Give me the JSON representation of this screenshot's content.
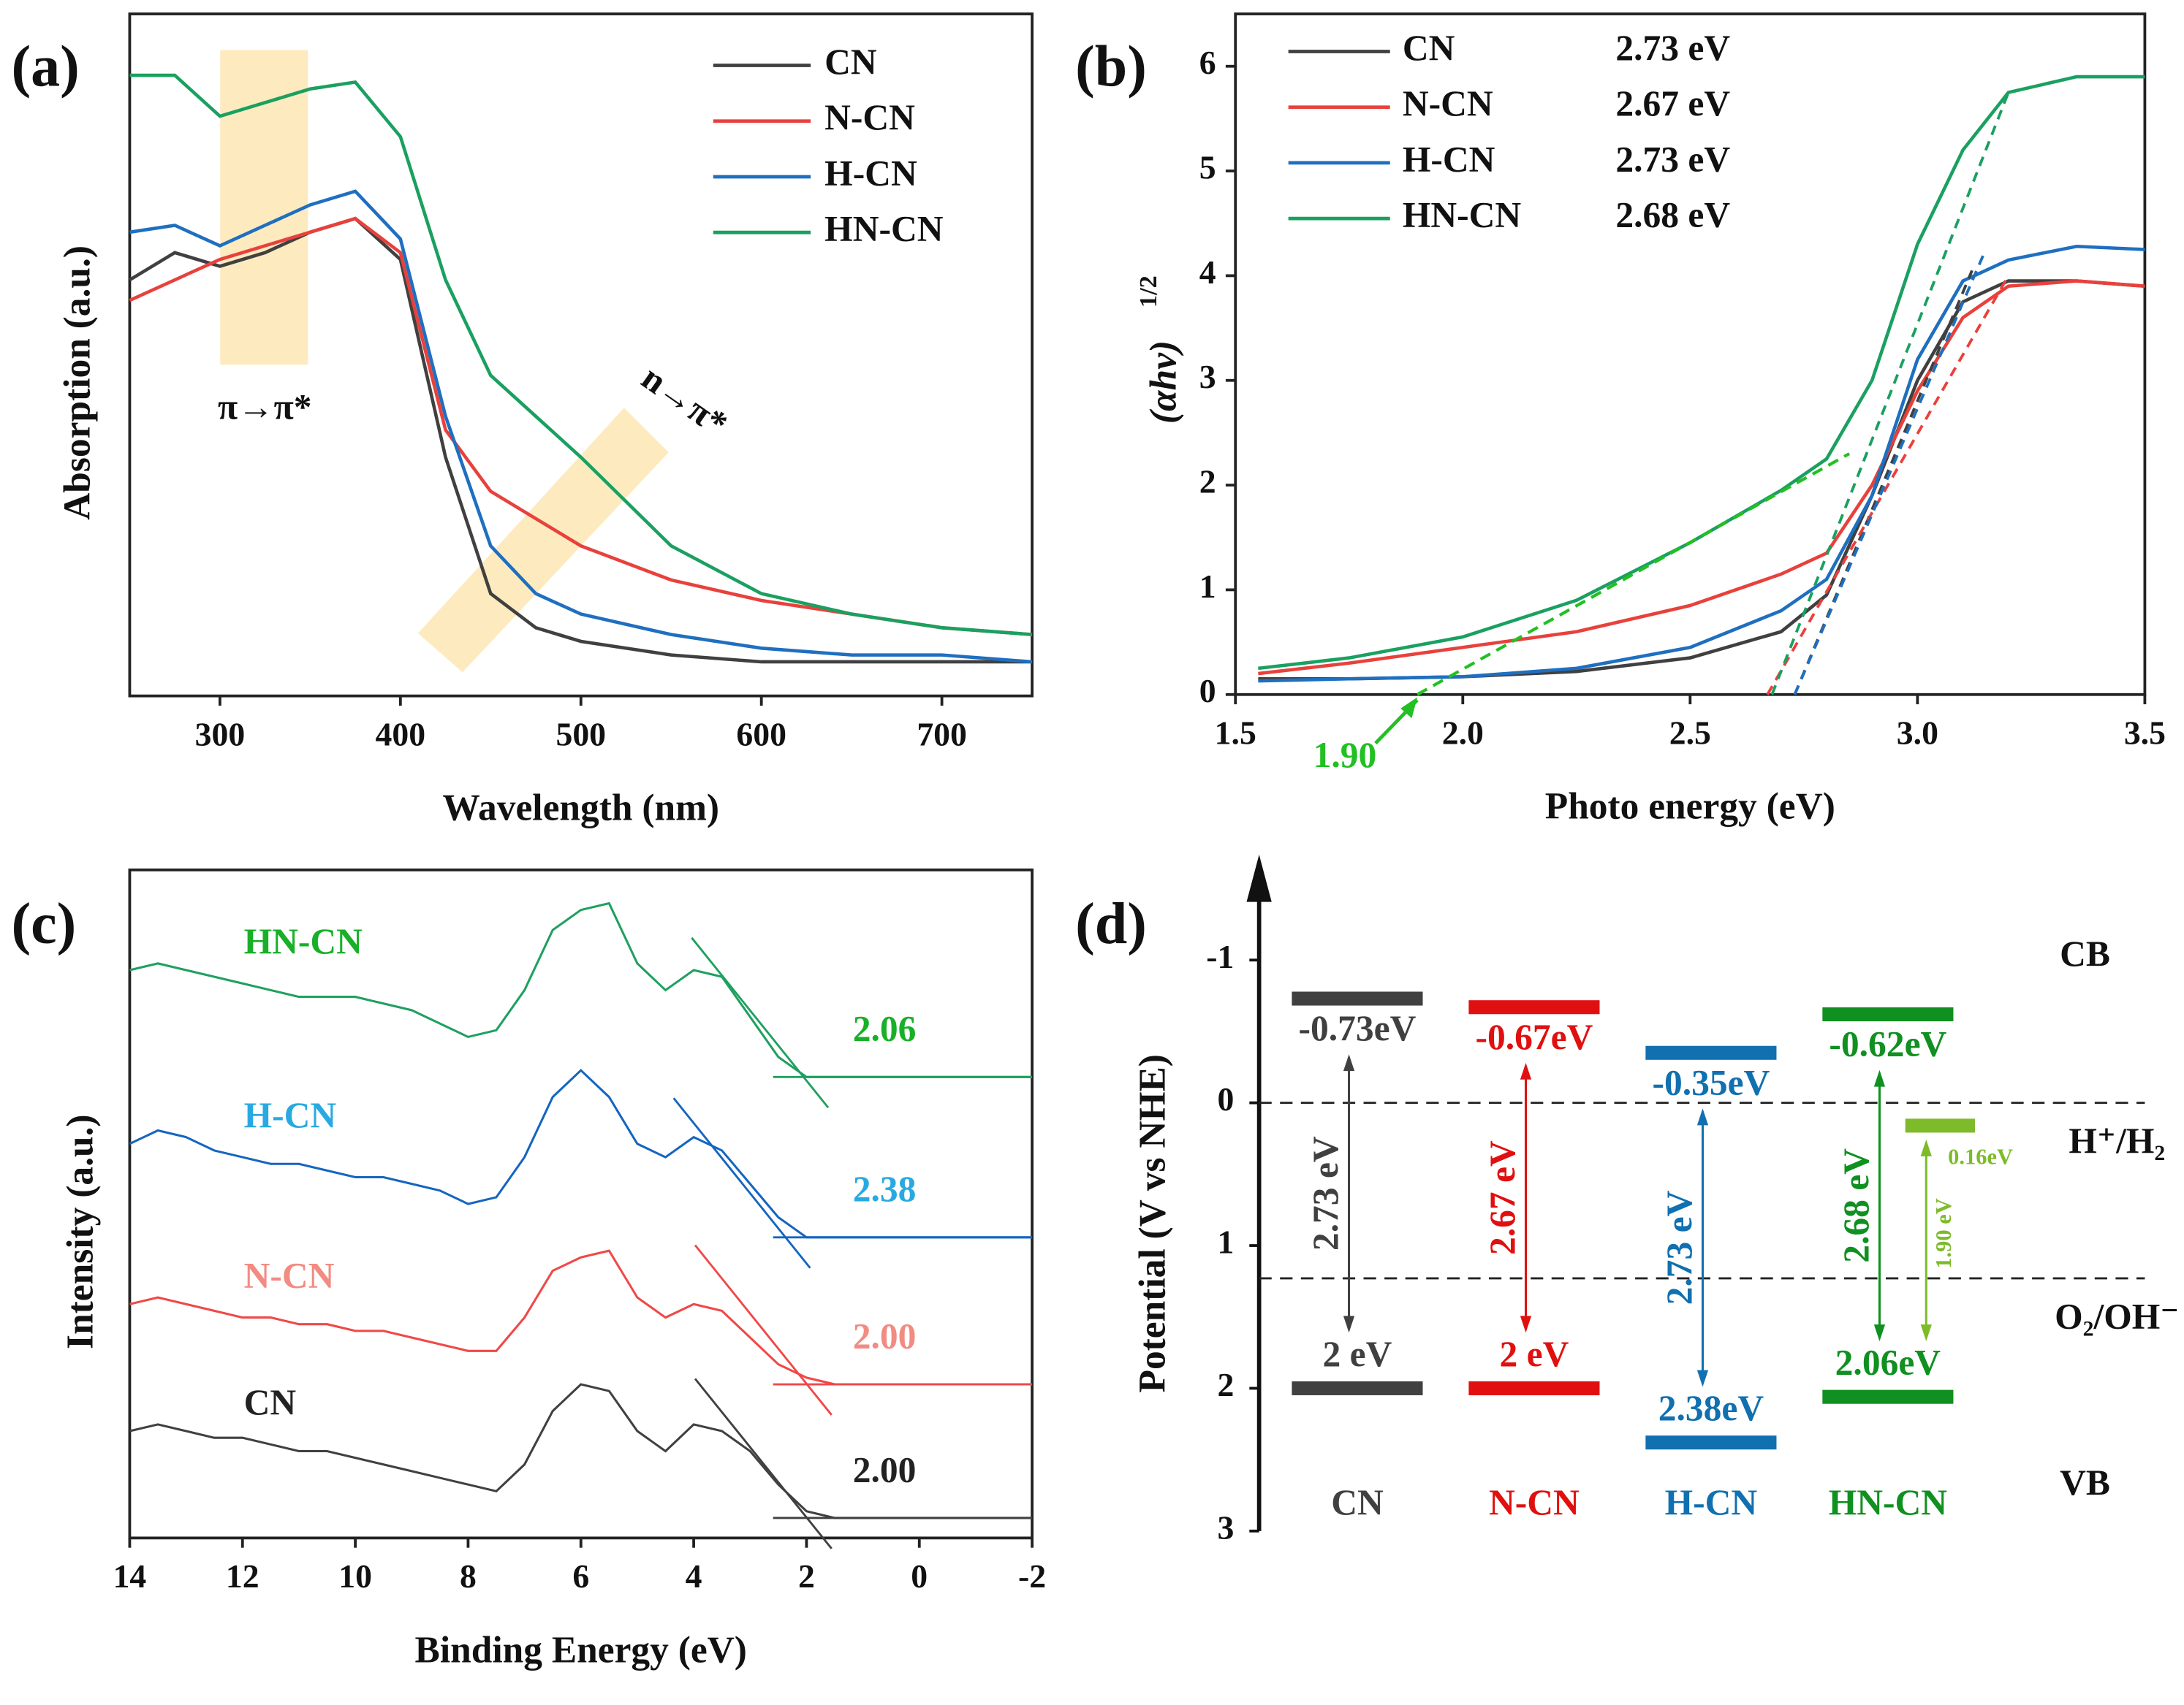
{
  "chart_data": [
    {
      "type": "line",
      "panel": "(a)",
      "x_label": "Wavelength (nm)",
      "y_label": "Absorption (a.u.)",
      "xlim": [
        250,
        750
      ],
      "ylim": [
        0,
        1
      ],
      "xticks": [
        300,
        400,
        500,
        600,
        700
      ],
      "x": [
        250,
        275,
        300,
        325,
        350,
        375,
        400,
        425,
        450,
        475,
        500,
        550,
        600,
        650,
        700,
        750
      ],
      "series": [
        {
          "name": "CN",
          "color": "#404040",
          "values": [
            0.61,
            0.65,
            0.63,
            0.65,
            0.68,
            0.7,
            0.64,
            0.35,
            0.15,
            0.1,
            0.08,
            0.06,
            0.05,
            0.05,
            0.05,
            0.05
          ]
        },
        {
          "name": "N-CN",
          "color": "#e8413c",
          "values": [
            0.58,
            0.61,
            0.64,
            0.66,
            0.68,
            0.7,
            0.65,
            0.39,
            0.3,
            0.26,
            0.22,
            0.17,
            0.14,
            0.12,
            0.1,
            0.09
          ]
        },
        {
          "name": "H-CN",
          "color": "#1f6fc0",
          "values": [
            0.68,
            0.69,
            0.66,
            0.69,
            0.72,
            0.74,
            0.67,
            0.41,
            0.22,
            0.15,
            0.12,
            0.09,
            0.07,
            0.06,
            0.06,
            0.05
          ]
        },
        {
          "name": "HN-CN",
          "color": "#1aa060",
          "values": [
            0.91,
            0.91,
            0.85,
            0.87,
            0.89,
            0.9,
            0.82,
            0.61,
            0.47,
            0.41,
            0.35,
            0.22,
            0.15,
            0.12,
            0.1,
            0.09
          ]
        }
      ],
      "annotations": [
        "π→π*",
        "n→π*"
      ]
    },
    {
      "type": "line",
      "panel": "(b)",
      "x_label": "Photo energy (eV)",
      "y_label": "(αhν)",
      "y_label_sup": "1/2",
      "xlim": [
        1.5,
        3.5
      ],
      "ylim": [
        0,
        6.5
      ],
      "xticks": [
        1.5,
        {
          "value": 2,
          "label": "2.0"
        },
        2.5,
        {
          "value": 3,
          "label": "3.0"
        },
        3.5
      ],
      "yticks": [
        0,
        1,
        2,
        3,
        4,
        5,
        6
      ],
      "x": [
        1.55,
        1.75,
        2.0,
        2.25,
        2.5,
        2.7,
        2.8,
        2.9,
        3.0,
        3.1,
        3.2,
        3.35,
        3.5
      ],
      "series": [
        {
          "name": "CN",
          "color": "#404040",
          "gap": 2.73,
          "gap_label": "2.73 eV",
          "tangent_end": [
            3.12,
            4.05
          ],
          "values": [
            0.15,
            0.15,
            0.17,
            0.22,
            0.35,
            0.6,
            0.95,
            1.9,
            3.0,
            3.75,
            3.95,
            3.95,
            3.9
          ]
        },
        {
          "name": "N-CN",
          "color": "#e8413c",
          "gap": 2.67,
          "gap_label": "2.67 eV",
          "tangent_end": [
            3.2,
            4.0
          ],
          "values": [
            0.2,
            0.3,
            0.45,
            0.6,
            0.85,
            1.15,
            1.35,
            2.0,
            2.9,
            3.6,
            3.9,
            3.95,
            3.9
          ]
        },
        {
          "name": "H-CN",
          "color": "#1f6fc0",
          "gap": 2.73,
          "gap_label": "2.73 eV",
          "tangent_end": [
            3.15,
            4.25
          ],
          "values": [
            0.13,
            0.15,
            0.17,
            0.25,
            0.45,
            0.8,
            1.1,
            1.9,
            3.2,
            3.95,
            4.15,
            4.28,
            4.25
          ]
        },
        {
          "name": "HN-CN",
          "color": "#1aa060",
          "gap": 2.68,
          "gap_label": "2.68 eV",
          "tangent_end": [
            3.2,
            5.75
          ],
          "values": [
            0.25,
            0.35,
            0.55,
            0.9,
            1.45,
            1.95,
            2.25,
            3.0,
            4.3,
            5.2,
            5.75,
            5.9,
            5.9
          ]
        }
      ],
      "annotation": {
        "text": "1.90",
        "x": 1.9,
        "color": "#22c022",
        "tangent_end": [
          2.85,
          2.3
        ]
      }
    },
    {
      "type": "line",
      "panel": "(c)",
      "x_label": "Binding Energy (eV)",
      "y_label": "Intensity (a.u.)",
      "xlim": [
        14,
        -2
      ],
      "ylim": [
        0,
        1
      ],
      "xticks": [
        14,
        12,
        10,
        8,
        6,
        4,
        2,
        0,
        -2
      ],
      "x": [
        14,
        13.5,
        13,
        12.5,
        12,
        11.5,
        11,
        10.5,
        10,
        9.5,
        9,
        8.5,
        8,
        7.5,
        7,
        6.5,
        6,
        5.5,
        5,
        4.5,
        4,
        3.5,
        3,
        2.5,
        2,
        1.5,
        1,
        0.5,
        0,
        -0.5,
        -1,
        -1.5,
        -2
      ],
      "series": [
        {
          "name": "CN",
          "color": "#404040",
          "label_color": "#222222",
          "vb": 2.0,
          "vb_label": "2.00",
          "values": [
            0.16,
            0.17,
            0.16,
            0.15,
            0.15,
            0.14,
            0.13,
            0.13,
            0.12,
            0.11,
            0.1,
            0.09,
            0.08,
            0.07,
            0.11,
            0.19,
            0.23,
            0.22,
            0.16,
            0.13,
            0.17,
            0.16,
            0.13,
            0.08,
            0.04,
            0.03,
            0.03,
            0.03,
            0.03,
            0.03,
            0.03,
            0.03,
            0.03
          ]
        },
        {
          "name": "N-CN",
          "color": "#f04848",
          "label_color": "#f28b82",
          "vb": 2.0,
          "vb_label": "2.00",
          "values": [
            0.35,
            0.36,
            0.35,
            0.34,
            0.33,
            0.33,
            0.32,
            0.32,
            0.31,
            0.31,
            0.3,
            0.29,
            0.28,
            0.28,
            0.33,
            0.4,
            0.42,
            0.43,
            0.36,
            0.33,
            0.35,
            0.34,
            0.3,
            0.26,
            0.24,
            0.23,
            0.23,
            0.23,
            0.23,
            0.23,
            0.23,
            0.23,
            0.23
          ]
        },
        {
          "name": "H-CN",
          "color": "#1565c0",
          "label_color": "#29a9e1",
          "vb": 2.38,
          "vb_label": "2.38",
          "values": [
            0.59,
            0.61,
            0.6,
            0.58,
            0.57,
            0.56,
            0.56,
            0.55,
            0.54,
            0.54,
            0.53,
            0.52,
            0.5,
            0.51,
            0.57,
            0.66,
            0.7,
            0.66,
            0.59,
            0.57,
            0.6,
            0.58,
            0.53,
            0.48,
            0.45,
            0.45,
            0.45,
            0.45,
            0.45,
            0.45,
            0.45,
            0.45,
            0.45
          ]
        },
        {
          "name": "HN-CN",
          "color": "#1fa060",
          "label_color": "#18b028",
          "vb": 2.06,
          "vb_label": "2.06",
          "values": [
            0.85,
            0.86,
            0.85,
            0.84,
            0.83,
            0.82,
            0.81,
            0.81,
            0.81,
            0.8,
            0.79,
            0.77,
            0.75,
            0.76,
            0.82,
            0.91,
            0.94,
            0.95,
            0.86,
            0.82,
            0.85,
            0.84,
            0.78,
            0.72,
            0.69,
            0.69,
            0.69,
            0.69,
            0.69,
            0.69,
            0.69,
            0.69,
            0.69
          ]
        }
      ]
    },
    {
      "type": "energy_levels",
      "panel": "(d)",
      "y_label": "Potential (V vs NHE)",
      "ylim": [
        3,
        -1.7
      ],
      "yticks": [
        -1,
        0,
        1,
        2,
        3
      ],
      "categories": [
        "CN",
        "N-CN",
        "H-CN",
        "HN-CN"
      ],
      "colors": [
        "#404040",
        "#e01010",
        "#1070b0",
        "#109020"
      ],
      "cb": [
        -0.73,
        -0.67,
        -0.35,
        -0.62
      ],
      "cb_labels": [
        "-0.73eV",
        "-0.67eV",
        "-0.35eV",
        "-0.62eV"
      ],
      "vb": [
        2,
        2,
        2.38,
        2.06
      ],
      "vb_labels": [
        "2 eV",
        "2 eV",
        "2.38eV",
        "2.06eV"
      ],
      "gap_labels": [
        "2.73 eV",
        "2.67 eV",
        "2.73 eV",
        "2.68 eV"
      ],
      "extra": {
        "level": 0.16,
        "label": "0.16eV",
        "gap_label": "1.90 eV",
        "color": "#7dbb2a"
      },
      "reference_levels": [
        {
          "value": 0,
          "label": "H⁺/H₂"
        },
        {
          "value": 1.23,
          "label": "O₂/OH⁻"
        }
      ],
      "band_labels": [
        "CB",
        "VB"
      ]
    }
  ]
}
